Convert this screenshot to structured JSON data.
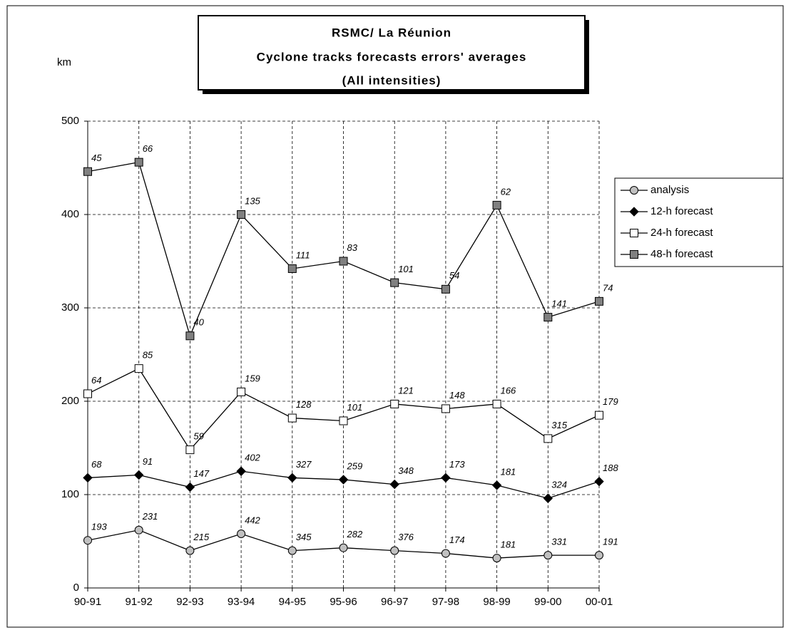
{
  "chart_data": {
    "type": "line",
    "title": [
      "RSMC/ La Réunion",
      "Cyclone tracks forecasts errors' averages",
      "(All intensities)"
    ],
    "y_label": "km",
    "categories": [
      "90-91",
      "91-92",
      "92-93",
      "93-94",
      "94-95",
      "95-96",
      "96-97",
      "97-98",
      "98-99",
      "99-00",
      "00-01"
    ],
    "ylim": [
      0,
      500
    ],
    "yticks": [
      0,
      100,
      200,
      300,
      400,
      500
    ],
    "grid": true,
    "legend": "right",
    "series": [
      {
        "name": "analysis",
        "color": "#c0c0c0",
        "marker": "circle",
        "values": [
          51,
          62,
          40,
          58,
          40,
          43,
          40,
          37,
          32,
          35,
          35
        ],
        "point_labels": [
          "193",
          "231",
          "215",
          "442",
          "345",
          "282",
          "376",
          "174",
          "181",
          "331",
          "191"
        ]
      },
      {
        "name": "12-h forecast",
        "color": "#000000",
        "marker": "diamond",
        "values": [
          118,
          121,
          108,
          125,
          118,
          116,
          111,
          118,
          110,
          96,
          114
        ],
        "point_labels": [
          "68",
          "91",
          "147",
          "402",
          "327",
          "259",
          "348",
          "173",
          "181",
          "324",
          "188"
        ]
      },
      {
        "name": "24-h forecast",
        "color": "#ffffff",
        "marker": "square",
        "values": [
          208,
          235,
          148,
          210,
          182,
          179,
          197,
          192,
          197,
          160,
          185
        ],
        "point_labels": [
          "64",
          "85",
          "59",
          "159",
          "128",
          "101",
          "121",
          "148",
          "166",
          "315",
          "179"
        ]
      },
      {
        "name": "48-h forecast",
        "color": "#808080",
        "marker": "square",
        "values": [
          446,
          456,
          270,
          400,
          342,
          350,
          327,
          320,
          410,
          290,
          307
        ],
        "point_labels": [
          "45",
          "66",
          "40",
          "135",
          "111",
          "83",
          "101",
          "54",
          "62",
          "141",
          "74"
        ]
      }
    ]
  }
}
